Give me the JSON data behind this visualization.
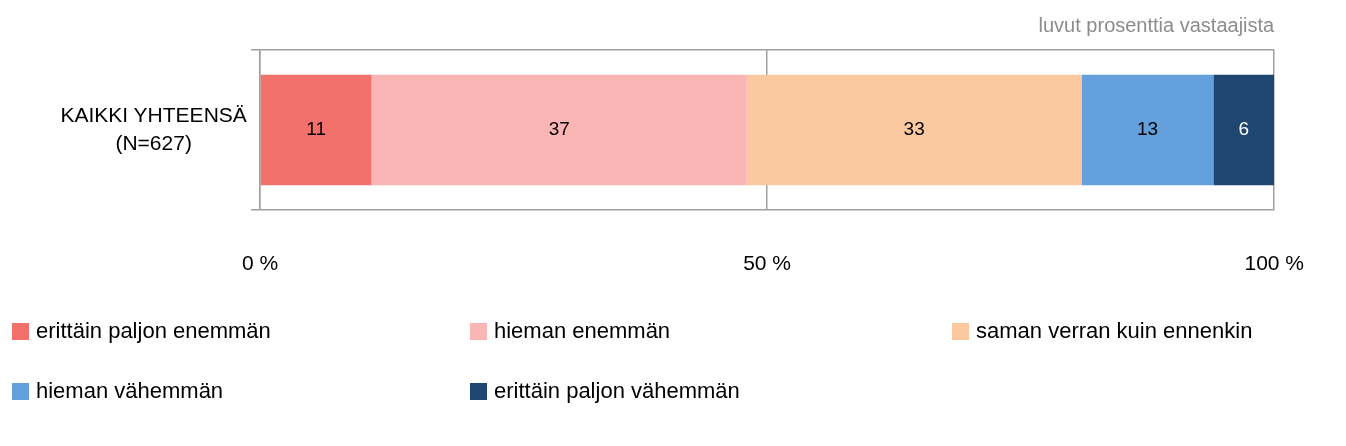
{
  "chart_data": {
    "type": "bar",
    "orientation": "horizontal",
    "stacked": true,
    "categories": [
      "KAIKKI YHTEENSÄ (N=627)"
    ],
    "series": [
      {
        "name": "erittäin paljon enemmän",
        "color": "#f2716b",
        "values": [
          11
        ]
      },
      {
        "name": "hieman enemmän",
        "color": "#f9b6b5",
        "values": [
          37
        ]
      },
      {
        "name": "saman verran kuin ennenkin",
        "color": "#fbc99f",
        "values": [
          33
        ]
      },
      {
        "name": "hieman vähemmän",
        "color": "#64a0dc",
        "values": [
          13
        ]
      },
      {
        "name": "erittäin paljon vähemmän",
        "color": "#1f4670",
        "values": [
          6
        ]
      }
    ],
    "xlim": [
      0,
      100
    ],
    "xticks": [
      {
        "value": 0,
        "label": "0 %"
      },
      {
        "value": 50,
        "label": "50 %"
      },
      {
        "value": 100,
        "label": "100 %"
      }
    ],
    "data_labels": true,
    "grid": "x",
    "legend": "bottom",
    "annotations": [
      "luvut prosenttia vastaajista"
    ]
  }
}
